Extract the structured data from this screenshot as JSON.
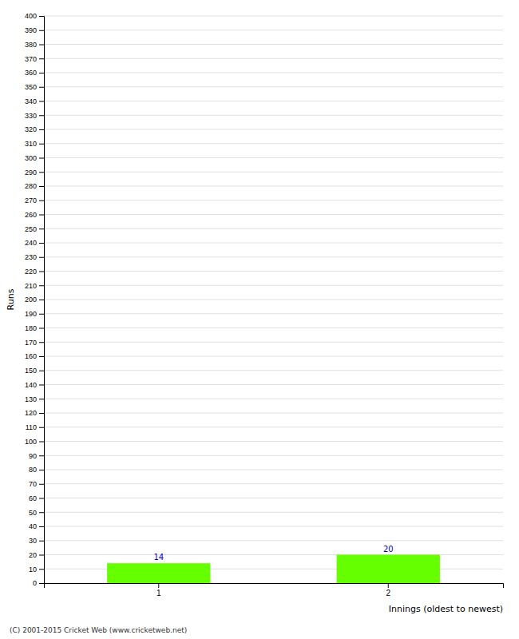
{
  "chart_data": {
    "type": "bar",
    "categories": [
      1,
      2
    ],
    "values": [
      14,
      20
    ],
    "color": "#66ff00",
    "xlabel": "Innings (oldest to newest)",
    "ylabel": "Runs",
    "ylim": [
      0,
      400
    ],
    "yticks": [
      0,
      10,
      20,
      30,
      40,
      50,
      60,
      70,
      80,
      90,
      100,
      110,
      120,
      130,
      140,
      150,
      160,
      170,
      180,
      190,
      200,
      210,
      220,
      230,
      240,
      250,
      260,
      270,
      280,
      290,
      300,
      310,
      320,
      330,
      340,
      350,
      360,
      370,
      380,
      390,
      400
    ],
    "grid": true,
    "data_labels": true,
    "annotations": [
      "(C) 2001-2015 Cricket Web (www.cricketweb.net)"
    ]
  }
}
